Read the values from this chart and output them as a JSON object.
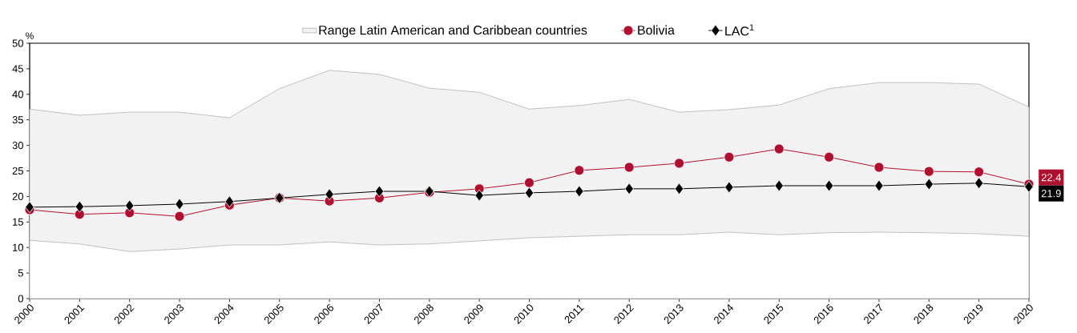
{
  "chart_data": {
    "type": "line",
    "ylabel": "%",
    "categories": [
      "2000",
      "2001",
      "2002",
      "2003",
      "2004",
      "2005",
      "2006",
      "2007",
      "2008",
      "2009",
      "2010",
      "2011",
      "2012",
      "2013",
      "2014",
      "2015",
      "2016",
      "2017",
      "2018",
      "2019",
      "2020"
    ],
    "series": [
      {
        "name": "Range Latin American and Caribbean countries",
        "type": "area",
        "color": "#f2f2f2",
        "values": [
          37.1,
          35.9,
          36.5,
          36.5,
          35.4,
          41.1,
          44.7,
          43.9,
          41.2,
          40.4,
          37.1,
          37.8,
          39.0,
          36.5,
          37.0,
          37.9,
          41.1,
          42.3,
          42.3,
          42.0,
          37.5
        ]
      },
      {
        "type": "area",
        "color": "#ffffff",
        "values": [
          11.4,
          10.7,
          9.2,
          9.7,
          10.5,
          10.5,
          11.1,
          10.5,
          10.7,
          11.3,
          11.9,
          12.2,
          12.5,
          12.5,
          13.0,
          12.5,
          12.9,
          13.0,
          12.9,
          12.7,
          12.2
        ]
      },
      {
        "name": "Bolivia",
        "type": "line",
        "color": "#b0102f",
        "marker": "circle",
        "values": [
          17.4,
          16.5,
          16.8,
          16.1,
          18.3,
          19.7,
          19.1,
          19.7,
          20.8,
          21.5,
          22.7,
          25.1,
          25.7,
          26.5,
          27.7,
          29.3,
          27.7,
          25.7,
          24.9,
          24.8,
          22.4
        ],
        "value_labels": [
          null,
          null,
          null,
          null,
          null,
          null,
          null,
          null,
          null,
          null,
          null,
          null,
          null,
          null,
          null,
          null,
          null,
          null,
          null,
          null,
          "22.4"
        ]
      },
      {
        "name": "LAC$^{1}$",
        "type": "line",
        "color": "#000000",
        "marker": "diamond",
        "values": [
          17.9,
          18.0,
          18.2,
          18.5,
          19.0,
          19.7,
          20.4,
          21.0,
          21.0,
          20.2,
          20.7,
          21.0,
          21.5,
          21.5,
          21.8,
          22.1,
          22.1,
          22.1,
          22.4,
          22.6,
          21.9
        ],
        "value_labels": [
          null,
          null,
          null,
          null,
          null,
          null,
          null,
          null,
          null,
          null,
          null,
          null,
          null,
          null,
          null,
          null,
          null,
          null,
          null,
          null,
          "21.9"
        ]
      }
    ],
    "ylim": [
      0,
      50
    ],
    "yticks": [
      0,
      5,
      10,
      15,
      20,
      25,
      30,
      35,
      40,
      45,
      50
    ],
    "grid": false,
    "legend": "top"
  }
}
